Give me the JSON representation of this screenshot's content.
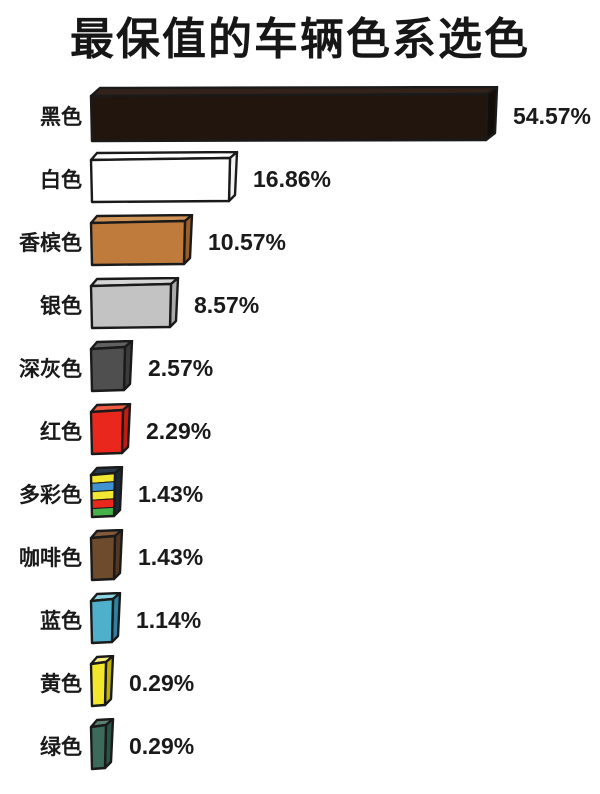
{
  "chart_data": {
    "type": "bar",
    "orientation": "horizontal",
    "title": "最保值的车辆色系选色",
    "categories": [
      "黑色",
      "白色",
      "香槟色",
      "银色",
      "深灰色",
      "红色",
      "多彩色",
      "咖啡色",
      "蓝色",
      "黄色",
      "绿色"
    ],
    "values": [
      54.57,
      16.86,
      10.57,
      8.57,
      2.57,
      2.29,
      1.43,
      1.43,
      1.14,
      0.29,
      0.29
    ],
    "value_labels": [
      "54.57%",
      "16.86%",
      "10.57%",
      "8.57%",
      "2.57%",
      "2.29%",
      "1.43%",
      "1.43%",
      "1.14%",
      "0.29%",
      "0.29%"
    ],
    "xlim": [
      0,
      60
    ],
    "legend": false,
    "grid": false,
    "bar_style": "hand-drawn-3d-slab",
    "outline_color": "#1a1a1a",
    "text_color": "#1a1a1a",
    "background_color": "#ffffff",
    "bar_colors": [
      {
        "front": "#21150e",
        "top": "#33221a",
        "side": "#150d08"
      },
      {
        "front": "#ffffff",
        "top": "#ffffff",
        "side": "#f2f2f2"
      },
      {
        "front": "#bf7b3c",
        "top": "#d09356",
        "side": "#995f28"
      },
      {
        "front": "#c3c3c3",
        "top": "#d6d6d6",
        "side": "#aaaaaa"
      },
      {
        "front": "#4f4f4f",
        "top": "#616161",
        "side": "#3b3b3b"
      },
      {
        "front": "#e9271c",
        "top": "#f05a42",
        "side": "#bf1d12"
      },
      {
        "front": "#f2e733",
        "top": "#2a3a4c",
        "side": "#1c2836",
        "stripes": [
          "#f2e733",
          "#3f93cf",
          "#f2e733",
          "#e9271c",
          "#46b14a"
        ]
      },
      {
        "front": "#6f4b2e",
        "top": "#805a3b",
        "side": "#543722"
      },
      {
        "front": "#4fb0cc",
        "top": "#8ed4e2",
        "side": "#2f81a0"
      },
      {
        "front": "#f3e72e",
        "top": "#f9f07e",
        "side": "#beb301"
      },
      {
        "front": "#3c6b5c",
        "top": "#5a8271",
        "side": "#2a5246"
      }
    ]
  }
}
